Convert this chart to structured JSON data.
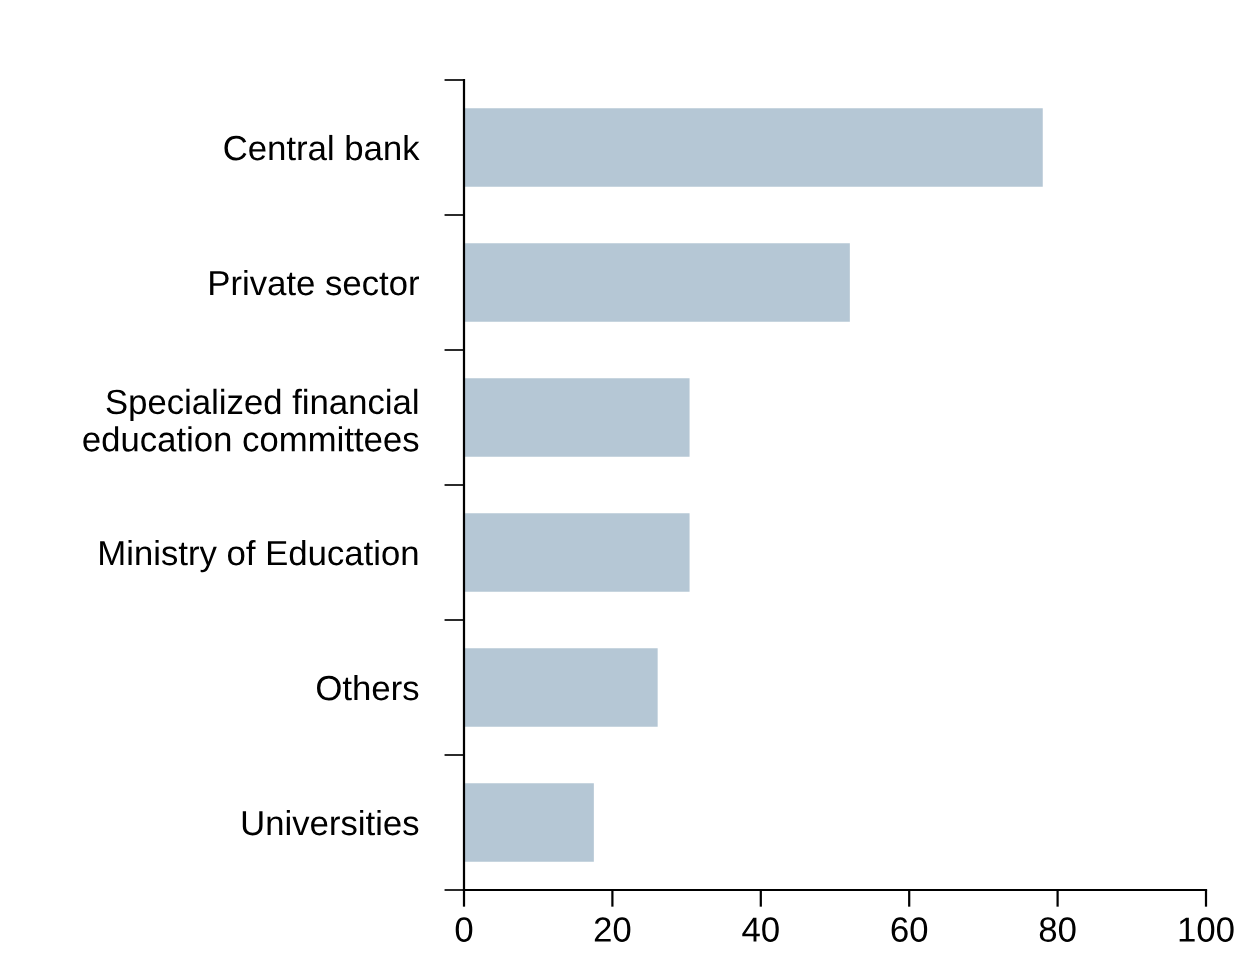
{
  "chart_data": {
    "type": "bar",
    "orientation": "horizontal",
    "categories": [
      "Central bank",
      "Private sector",
      "Specialized financial\neducation committees",
      "Ministry of Education",
      "Others",
      "Universities"
    ],
    "values": [
      78,
      52,
      30.4,
      30.4,
      26.1,
      17.5
    ],
    "color": "#b5c7d5",
    "xlim": [
      0,
      100
    ],
    "xticks": [
      0,
      20,
      40,
      60,
      80,
      100
    ]
  }
}
